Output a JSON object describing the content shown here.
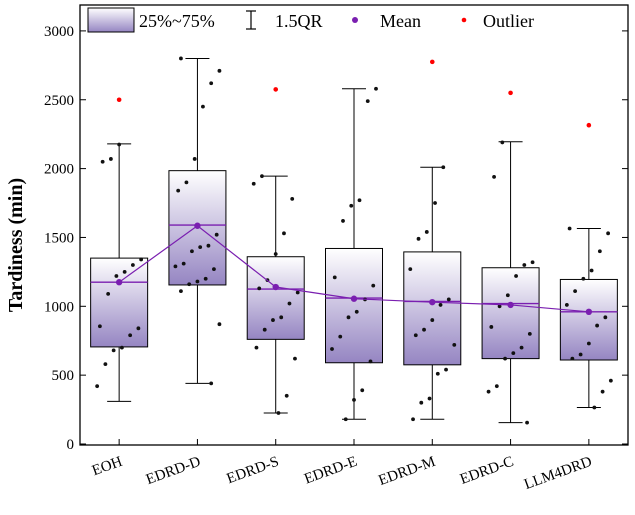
{
  "chart_data": {
    "type": "box",
    "title": "",
    "xlabel": "",
    "ylabel": "Tardiness (min)",
    "ylim": [
      0,
      3050
    ],
    "yticks": [
      0,
      500,
      1000,
      1500,
      2000,
      2500,
      3000
    ],
    "categories": [
      "EOH",
      "EDRD-D",
      "EDRD-S",
      "EDRD-E",
      "EDRD-M",
      "EDRD-C",
      "LLM4DRD"
    ],
    "boxes": [
      {
        "q1": 705,
        "median": 1175,
        "q3": 1350,
        "whisker_low": 310,
        "whisker_high": 2180,
        "mean": 1175,
        "outliers": [
          2500
        ]
      },
      {
        "q1": 1155,
        "median": 1590,
        "q3": 1985,
        "whisker_low": 440,
        "whisker_high": 2800,
        "mean": 1585,
        "outliers": []
      },
      {
        "q1": 760,
        "median": 1125,
        "q3": 1360,
        "whisker_low": 225,
        "whisker_high": 1945,
        "mean": 1140,
        "outliers": [
          2575
        ]
      },
      {
        "q1": 590,
        "median": 1060,
        "q3": 1420,
        "whisker_low": 180,
        "whisker_high": 2580,
        "mean": 1055,
        "outliers": []
      },
      {
        "q1": 575,
        "median": 1035,
        "q3": 1395,
        "whisker_low": 180,
        "whisker_high": 2010,
        "mean": 1030,
        "outliers": [
          2775
        ]
      },
      {
        "q1": 620,
        "median": 1020,
        "q3": 1280,
        "whisker_low": 155,
        "whisker_high": 2195,
        "mean": 1010,
        "outliers": [
          2550
        ]
      },
      {
        "q1": 610,
        "median": 960,
        "q3": 1195,
        "whisker_low": 265,
        "whisker_high": 1565,
        "mean": 960,
        "outliers": [
          2315
        ]
      }
    ],
    "points": [
      [
        420,
        580,
        680,
        700,
        790,
        840,
        855,
        1090,
        1220,
        1250,
        1300,
        1340,
        2050,
        2070,
        2175
      ],
      [
        440,
        870,
        1110,
        1160,
        1180,
        1200,
        1270,
        1290,
        1310,
        1400,
        1430,
        1440,
        1520,
        1840,
        1900,
        2070,
        2450,
        2620,
        2710,
        2800
      ],
      [
        225,
        350,
        620,
        700,
        830,
        900,
        920,
        1020,
        1100,
        1130,
        1190,
        1380,
        1530,
        1780,
        1890,
        1945
      ],
      [
        180,
        320,
        390,
        600,
        690,
        780,
        920,
        960,
        1050,
        1150,
        1210,
        1620,
        1730,
        1770,
        2490,
        2580
      ],
      [
        180,
        300,
        330,
        510,
        540,
        720,
        790,
        830,
        900,
        1010,
        1050,
        1270,
        1490,
        1540,
        1750,
        2010
      ],
      [
        155,
        380,
        420,
        620,
        660,
        700,
        800,
        850,
        1000,
        1080,
        1220,
        1300,
        1320,
        1940,
        2190
      ],
      [
        265,
        380,
        460,
        620,
        650,
        730,
        860,
        920,
        1010,
        1110,
        1200,
        1260,
        1400,
        1530,
        1565
      ]
    ],
    "legend": {
      "box_label": "25%~75%",
      "whisker_label": "1.5QR",
      "mean_label": "Mean",
      "outlier_label": "Outlier"
    },
    "colors": {
      "mean": "#7a1fb0",
      "outlier": "#ff0000",
      "point": "#111111",
      "box_top": "#ffffff",
      "box_bottom": "#9585c2"
    }
  }
}
